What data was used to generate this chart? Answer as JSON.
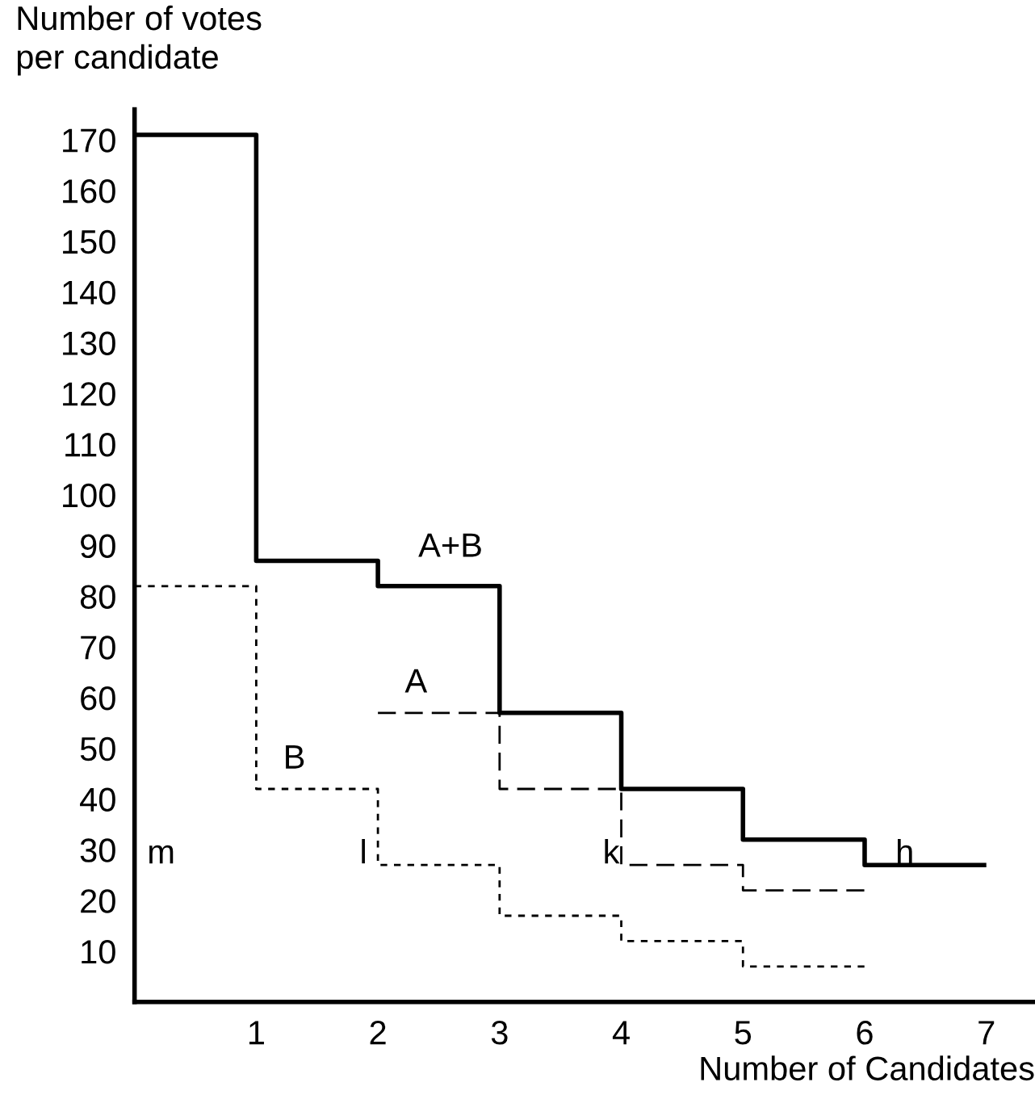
{
  "chart_data": {
    "type": "step",
    "xlabel": "Number of Candidates",
    "ylabel": "Number of votes\nper candidate",
    "xlim": [
      0,
      7.4
    ],
    "ylim": [
      0,
      176
    ],
    "xticks": [
      1,
      2,
      3,
      4,
      5,
      6,
      7
    ],
    "yticks": [
      10,
      20,
      30,
      40,
      50,
      60,
      70,
      80,
      90,
      100,
      110,
      120,
      130,
      140,
      150,
      160,
      170
    ],
    "grid": false,
    "legend": false,
    "series": [
      {
        "name": "A+B",
        "color": "#000000",
        "line_style": "solid",
        "x": [
          0,
          1,
          2,
          3,
          4,
          5,
          6,
          7
        ],
        "values": [
          171,
          87,
          82,
          57,
          42,
          32,
          27,
          27
        ]
      },
      {
        "name": "A",
        "color": "#000000",
        "line_style": "dashed",
        "x": [
          2,
          3,
          4,
          5,
          6
        ],
        "values": [
          57,
          42,
          27,
          22,
          22
        ]
      },
      {
        "name": "B",
        "color": "#000000",
        "line_style": "dotted",
        "x": [
          0,
          1,
          2,
          3,
          4,
          5,
          6
        ],
        "values": [
          82,
          42,
          27,
          17,
          12,
          7,
          7
        ]
      }
    ],
    "annotations": [
      "m",
      "l",
      "k",
      "h"
    ]
  }
}
